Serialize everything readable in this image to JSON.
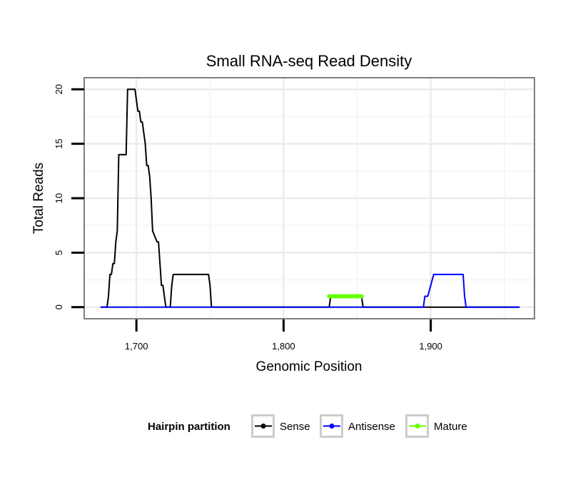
{
  "chart_data": {
    "type": "line",
    "title": "Small RNA-seq Read Density",
    "xlabel": "Genomic Position",
    "ylabel": "Total Reads",
    "xlim": [
      1665,
      1970
    ],
    "ylim": [
      -1,
      21
    ],
    "x_ticks": [
      1700,
      1800,
      1900
    ],
    "x_tick_labels": [
      "1,700",
      "1,800",
      "1,900"
    ],
    "y_ticks": [
      0,
      5,
      10,
      15,
      20
    ],
    "y_tick_labels": [
      "0",
      "5",
      "10",
      "15",
      "20"
    ],
    "grid": true,
    "legend": {
      "title": "Hairpin partition",
      "position": "bottom"
    },
    "series": [
      {
        "name": "Sense",
        "color": "#000000",
        "x": [
          1676,
          1680,
          1681,
          1682,
          1683,
          1684,
          1685,
          1686,
          1687,
          1688,
          1693,
          1694,
          1699,
          1700,
          1701,
          1702,
          1703,
          1704,
          1705,
          1706,
          1707,
          1708,
          1709,
          1710,
          1711,
          1714,
          1715,
          1716,
          1717,
          1718,
          1719,
          1720,
          1721,
          1723,
          1724,
          1725,
          1726,
          1749,
          1750,
          1751,
          1831,
          1832,
          1853,
          1854,
          1960
        ],
        "y": [
          0,
          0,
          1,
          3,
          3,
          4,
          4,
          6,
          7,
          14,
          14,
          20,
          20,
          19,
          18,
          18,
          17,
          17,
          16,
          15,
          13,
          13,
          12,
          10,
          7,
          6,
          6,
          4,
          2,
          2,
          1,
          0,
          0,
          0,
          2,
          3,
          3,
          3,
          2,
          0,
          0,
          1,
          1,
          0,
          0
        ]
      },
      {
        "name": "Antisense",
        "color": "#0000ff",
        "x": [
          1676,
          1895,
          1896,
          1898,
          1900,
          1902,
          1920,
          1922,
          1923,
          1924,
          1960
        ],
        "y": [
          0,
          0,
          1,
          1,
          2,
          3,
          3,
          3,
          1,
          0,
          0
        ]
      },
      {
        "name": "Mature",
        "color": "#66ff00",
        "x": [
          1831,
          1832,
          1833,
          1834,
          1835,
          1836,
          1837,
          1838,
          1839,
          1840,
          1841,
          1842,
          1843,
          1844,
          1845,
          1846,
          1847,
          1848,
          1849,
          1850,
          1851,
          1852,
          1853
        ],
        "y": [
          1,
          1,
          1,
          1,
          1,
          1,
          1,
          1,
          1,
          1,
          1,
          1,
          1,
          1,
          1,
          1,
          1,
          1,
          1,
          1,
          1,
          1,
          1
        ]
      }
    ]
  }
}
